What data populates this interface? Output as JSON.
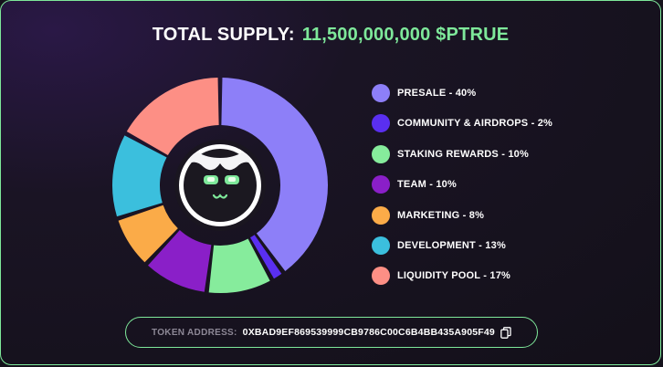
{
  "header": {
    "label": "TOTAL SUPPLY:",
    "value": "11,500,000,000 $PTRUE"
  },
  "chart_data": {
    "type": "pie",
    "categories": [
      "PRESALE",
      "COMMUNITY & AIRDROPS",
      "STAKING REWARDS",
      "TEAM",
      "MARKETING",
      "DEVELOPMENT",
      "LIQUIDITY POOL"
    ],
    "values": [
      40,
      2,
      10,
      10,
      8,
      13,
      17
    ],
    "colors": [
      "#8d7ff8",
      "#5a2ff0",
      "#86ec9c",
      "#8a1fc8",
      "#fbab48",
      "#3bbfdd",
      "#fd8f85"
    ],
    "unit": "%"
  },
  "legend": [
    {
      "label": "PRESALE - 40%",
      "color": "#8d7ff8"
    },
    {
      "label": "COMMUNITY & AIRDROPS - 2%",
      "color": "#5a2ff0"
    },
    {
      "label": "STAKING REWARDS - 10%",
      "color": "#86ec9c"
    },
    {
      "label": "TEAM - 10%",
      "color": "#8a1fc8"
    },
    {
      "label": "MARKETING - 8%",
      "color": "#fbab48"
    },
    {
      "label": "DEVELOPMENT - 13%",
      "color": "#3bbfdd"
    },
    {
      "label": "LIQUIDITY POOL - 17%",
      "color": "#fd8f85"
    }
  ],
  "token": {
    "label": "TOKEN ADDRESS:",
    "address": "0XBAD9EF869539999CB9786C00C6B4BB435A905F49",
    "copy_icon": "copy-icon"
  },
  "mascot_icon": "cat-mascot-icon",
  "accent_color": "#7ee89a"
}
